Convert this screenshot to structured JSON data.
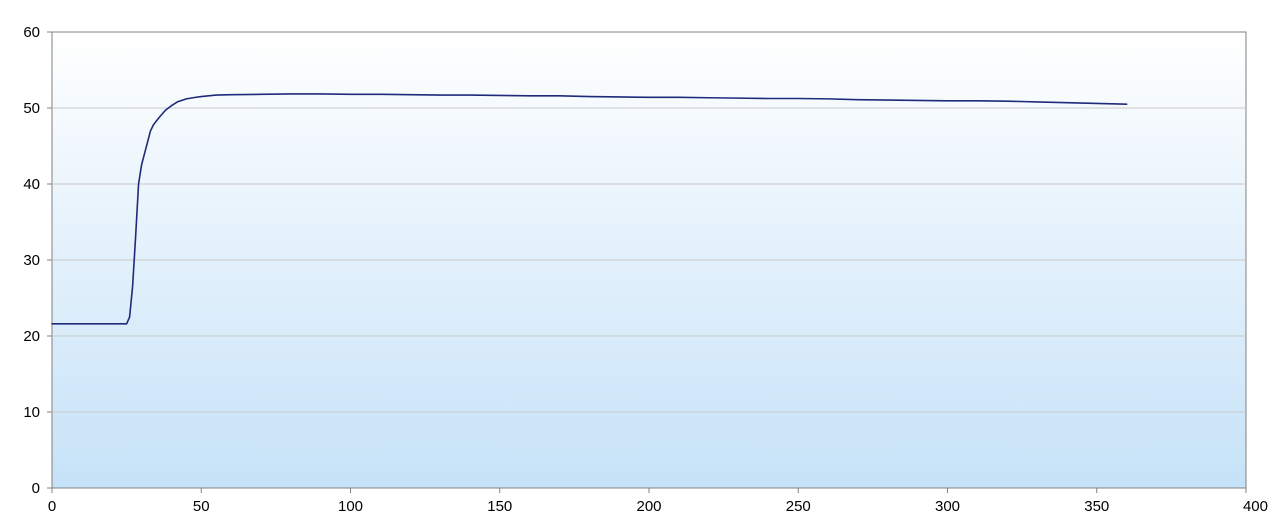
{
  "chart_data": {
    "type": "line",
    "title": "",
    "xlabel": "",
    "ylabel": "",
    "xlim": [
      0,
      400
    ],
    "ylim": [
      0,
      60
    ],
    "xticks": [
      0,
      50,
      100,
      150,
      200,
      250,
      300,
      350,
      400
    ],
    "yticks": [
      0,
      10,
      20,
      30,
      40,
      50,
      60
    ],
    "grid": "horizontal",
    "legend": "none",
    "colors": {
      "line": "#1f2a7a",
      "gradient_top": "#ffffff",
      "gradient_bottom": "#c6e2f8",
      "grid": "#c8c8c8",
      "axis": "#808080"
    },
    "series": [
      {
        "values": [
          [
            0,
            21.6
          ],
          [
            5,
            21.6
          ],
          [
            10,
            21.6
          ],
          [
            15,
            21.6
          ],
          [
            20,
            21.6
          ],
          [
            24,
            21.6
          ],
          [
            25,
            21.6
          ],
          [
            26,
            22.5
          ],
          [
            27,
            26.5
          ],
          [
            28,
            33.0
          ],
          [
            29,
            40.0
          ],
          [
            30,
            42.5
          ],
          [
            31,
            44.0
          ],
          [
            32,
            45.5
          ],
          [
            33,
            47.0
          ],
          [
            34,
            47.8
          ],
          [
            35,
            48.3
          ],
          [
            36,
            48.8
          ],
          [
            38,
            49.7
          ],
          [
            40,
            50.3
          ],
          [
            42,
            50.8
          ],
          [
            45,
            51.2
          ],
          [
            48,
            51.4
          ],
          [
            50,
            51.5
          ],
          [
            55,
            51.7
          ],
          [
            60,
            51.75
          ],
          [
            70,
            51.8
          ],
          [
            80,
            51.85
          ],
          [
            90,
            51.85
          ],
          [
            100,
            51.8
          ],
          [
            110,
            51.8
          ],
          [
            120,
            51.75
          ],
          [
            130,
            51.7
          ],
          [
            140,
            51.7
          ],
          [
            150,
            51.65
          ],
          [
            160,
            51.6
          ],
          [
            170,
            51.6
          ],
          [
            180,
            51.5
          ],
          [
            190,
            51.45
          ],
          [
            200,
            51.4
          ],
          [
            210,
            51.4
          ],
          [
            220,
            51.35
          ],
          [
            230,
            51.3
          ],
          [
            240,
            51.25
          ],
          [
            250,
            51.25
          ],
          [
            260,
            51.2
          ],
          [
            270,
            51.1
          ],
          [
            280,
            51.05
          ],
          [
            290,
            51.0
          ],
          [
            300,
            50.95
          ],
          [
            310,
            50.95
          ],
          [
            320,
            50.9
          ],
          [
            330,
            50.8
          ],
          [
            340,
            50.7
          ],
          [
            350,
            50.6
          ],
          [
            360,
            50.5
          ]
        ]
      }
    ]
  }
}
